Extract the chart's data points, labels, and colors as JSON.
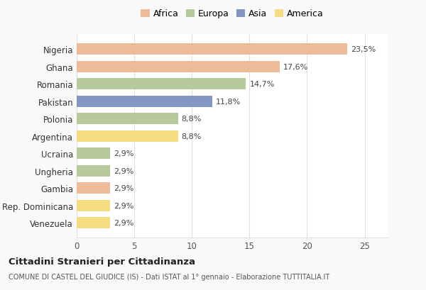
{
  "countries": [
    "Nigeria",
    "Ghana",
    "Romania",
    "Pakistan",
    "Polonia",
    "Argentina",
    "Ucraina",
    "Ungheria",
    "Gambia",
    "Rep. Dominicana",
    "Venezuela"
  ],
  "values": [
    23.5,
    17.6,
    14.7,
    11.8,
    8.8,
    8.8,
    2.9,
    2.9,
    2.9,
    2.9,
    2.9
  ],
  "labels": [
    "23,5%",
    "17,6%",
    "14,7%",
    "11,8%",
    "8,8%",
    "8,8%",
    "2,9%",
    "2,9%",
    "2,9%",
    "2,9%",
    "2,9%"
  ],
  "colors": [
    "#EDBB99",
    "#EDBB99",
    "#B5C99A",
    "#8497C2",
    "#B5C99A",
    "#F5DC82",
    "#B5C99A",
    "#B5C99A",
    "#EDBB99",
    "#F5DC82",
    "#F5DC82"
  ],
  "legend": [
    {
      "label": "Africa",
      "color": "#EDBB99"
    },
    {
      "label": "Europa",
      "color": "#B5C99A"
    },
    {
      "label": "Asia",
      "color": "#8497C2"
    },
    {
      "label": "America",
      "color": "#F5DC82"
    }
  ],
  "xlim": [
    0,
    27
  ],
  "xticks": [
    0,
    5,
    10,
    15,
    20,
    25
  ],
  "title_main": "Cittadini Stranieri per Cittadinanza",
  "title_sub": "COMUNE DI CASTEL DEL GIUDICE (IS) - Dati ISTAT al 1° gennaio - Elaborazione TUTTITALIA.IT",
  "background_color": "#f9f9f9",
  "bar_background": "#ffffff",
  "grid_color": "#e0e0e0"
}
